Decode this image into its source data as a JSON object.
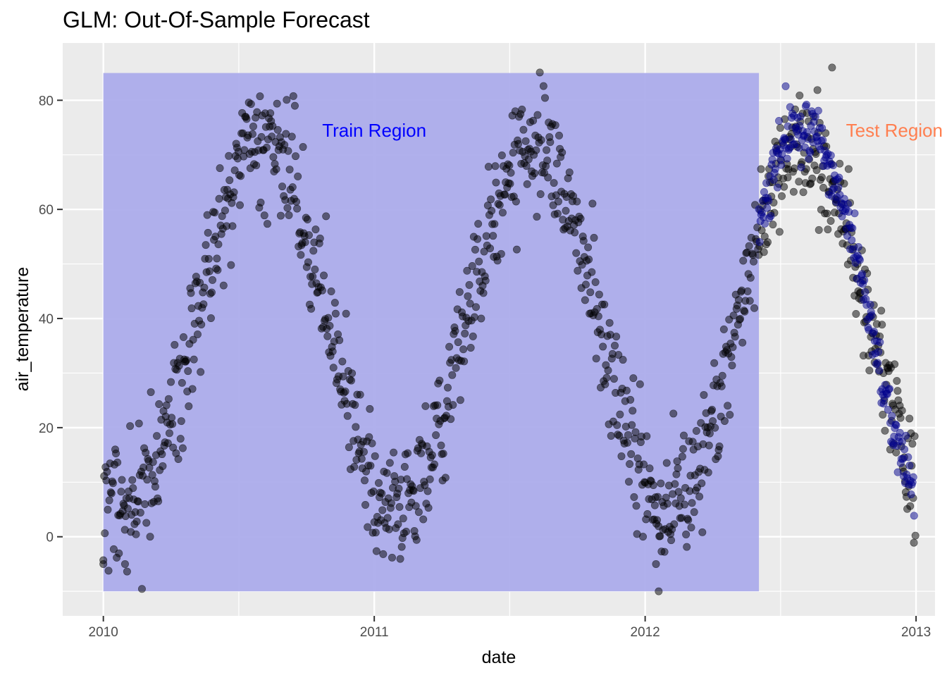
{
  "chart_data": {
    "type": "scatter",
    "title": "GLM: Out-Of-Sample Forecast",
    "xlabel": "date",
    "ylabel": "air_temperature",
    "x_ticks": [
      "2010",
      "2011",
      "2012",
      "2013"
    ],
    "y_ticks": [
      0,
      20,
      40,
      60,
      80
    ],
    "xlim": [
      2009.85,
      2013.07
    ],
    "ylim": [
      -14.5,
      90.5
    ],
    "grid": true,
    "theme": "ggplot2 grey",
    "colors": {
      "panel_bg": "#ebebeb",
      "grid": "#ffffff",
      "train_region_fill": "#a9a9ea",
      "train_label": "#0000ff",
      "test_label": "#ff7f50",
      "observed_points": "#000000",
      "forecast_points": "#00008b"
    },
    "annotations": [
      {
        "text": "Train Region",
        "x": 2011.0,
        "y": 74.5,
        "color": "#0000ff"
      },
      {
        "text": "Test Region",
        "x": 2012.92,
        "y": 74.5,
        "color": "#ff7f50"
      }
    ],
    "train_region": {
      "x": [
        2010.0,
        2012.42
      ],
      "y": [
        -10,
        85
      ]
    },
    "series": [
      {
        "name": "observed",
        "color": "#000000",
        "model": {
          "x_start": 2010.0,
          "x_end": 2013.0,
          "step": 0.00274,
          "mean": 38.5,
          "amplitude": 33.0,
          "peak_phase": 0.585,
          "noise_sd": 5.5,
          "outliers": [
            [
              2010.0,
              -5
            ],
            [
              2010.08,
              -5
            ],
            [
              2012.05,
              -10
            ],
            [
              2012.04,
              -5
            ],
            [
              2012.69,
              86
            ]
          ]
        }
      },
      {
        "name": "forecast",
        "color": "#00008b",
        "model": {
          "x_start": 2012.42,
          "x_end": 2012.995,
          "step": 0.00274,
          "mean": 38.5,
          "amplitude": 36.5,
          "peak_phase": 0.585,
          "noise_sd": 2.6
        }
      }
    ]
  }
}
